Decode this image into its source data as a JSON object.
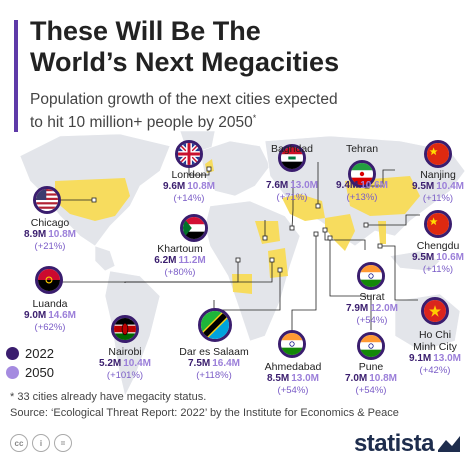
{
  "header": {
    "title_line1": "These Will Be The",
    "title_line2": "World’s Next Megacities",
    "subtitle_line1": "Population growth of the next cities expected",
    "subtitle_line2": "to hit 10 million+ people by 2050",
    "subtitle_sup": "*"
  },
  "legend": {
    "items": [
      {
        "label": "2022",
        "color": "#3a1d6e"
      },
      {
        "label": "2050",
        "color": "#a58be0"
      }
    ]
  },
  "footnote": "* 33 cities already have megacity status.",
  "source": "Source: ‘Ecological Threat Report: 2022’ by the Institute for Economics & Peace",
  "brand": "statista",
  "colors": {
    "accent": "#5e3aa8",
    "dark_purple": "#3a1d6e",
    "light_purple": "#9b7fd9",
    "land": "#e3e5ea",
    "highlight": "#f7dc5e"
  },
  "chart_data": {
    "type": "table",
    "title": "These Will Be The World’s Next Megacities",
    "series_names": [
      "2022",
      "2050"
    ],
    "unit": "M",
    "cities": [
      {
        "name": "London",
        "v2022": "9.6M",
        "v2050": "10.8M",
        "growth": "(+14%)",
        "flag": "uk-flag-icon"
      },
      {
        "name": "Baghdad",
        "v2022": "7.6M",
        "v2050": "13.0M",
        "growth": "(+71%)",
        "flag": "iraq-flag-icon"
      },
      {
        "name": "Tehran",
        "v2022": "9.4M",
        "v2050": "10.6M",
        "growth": "(+13%)",
        "flag": "iran-flag-icon"
      },
      {
        "name": "Nanjing",
        "v2022": "9.5M",
        "v2050": "10.4M",
        "growth": "(+11%)",
        "flag": "china-flag-icon"
      },
      {
        "name": "Chicago",
        "v2022": "8.9M",
        "v2050": "10.8M",
        "growth": "(+21%)",
        "flag": "us-flag-icon"
      },
      {
        "name": "Khartoum",
        "v2022": "6.2M",
        "v2050": "11.2M",
        "growth": "(+80%)",
        "flag": "sudan-flag-icon"
      },
      {
        "name": "Chengdu",
        "v2022": "9.5M",
        "v2050": "10.6M",
        "growth": "(+11%)",
        "flag": "china-flag-icon"
      },
      {
        "name": "Luanda",
        "v2022": "9.0M",
        "v2050": "14.6M",
        "growth": "(+62%)",
        "flag": "angola-flag-icon"
      },
      {
        "name": "Surat",
        "v2022": "7.9M",
        "v2050": "12.0M",
        "growth": "(+54%)",
        "flag": "india-flag-icon"
      },
      {
        "name": "Ho Chi Minh City",
        "v2022": "9.1M",
        "v2050": "13.0M",
        "growth": "(+42%)",
        "flag": "vietnam-flag-icon"
      },
      {
        "name": "Nairobi",
        "v2022": "5.2M",
        "v2050": "10.4M",
        "growth": "(+101%)",
        "flag": "kenya-flag-icon"
      },
      {
        "name": "Dar es Salaam",
        "v2022": "7.5M",
        "v2050": "16.4M",
        "growth": "(+118%)",
        "flag": "tanzania-flag-icon"
      },
      {
        "name": "Ahmedabad",
        "v2022": "8.5M",
        "v2050": "13.0M",
        "growth": "(+54%)",
        "flag": "india-flag-icon"
      },
      {
        "name": "Pune",
        "v2022": "7.0M",
        "v2050": "10.8M",
        "growth": "(+54%)",
        "flag": "india-flag-icon"
      }
    ]
  }
}
